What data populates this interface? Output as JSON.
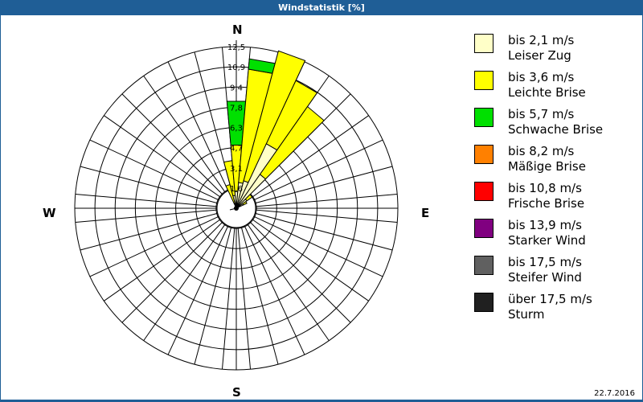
{
  "window": {
    "title": "Windstatistik [%]",
    "date": "22.7.2016"
  },
  "compass": {
    "n": "N",
    "e": "E",
    "s": "S",
    "w": "W"
  },
  "chart_data": {
    "type": "wind-rose",
    "title": "Windstatistik [%]",
    "unit": "%",
    "radial_ticks": [
      "1,6",
      "3,1",
      "4,7",
      "6,3",
      "7,8",
      "9,4",
      "10,9",
      "12,5"
    ],
    "radial_max": 12.5,
    "sector_width_deg": 10,
    "categories": [
      "bis 2,1 m/s",
      "bis 3,6 m/s",
      "bis 5,7 m/s",
      "bis 8,2 m/s",
      "bis 10,8 m/s",
      "bis 13,9 m/s",
      "bis 17,5 m/s",
      "über 17,5 m/s"
    ],
    "sectors": [
      {
        "direction_deg": 340,
        "cumulative": [
          0.4,
          1.9,
          1.9
        ]
      },
      {
        "direction_deg": 350,
        "cumulative": [
          1.0,
          3.7,
          3.7
        ]
      },
      {
        "direction_deg": 0,
        "cumulative": [
          1.3,
          4.9,
          8.3
        ]
      },
      {
        "direction_deg": 10,
        "cumulative": [
          2.0,
          10.8,
          11.6
        ]
      },
      {
        "direction_deg": 20,
        "cumulative": [
          2.2,
          12.6,
          12.6
        ]
      },
      {
        "direction_deg": 30,
        "cumulative": [
          5.5,
          10.9,
          10.9
        ]
      },
      {
        "direction_deg": 40,
        "cumulative": [
          3.2,
          9.6,
          9.6
        ]
      },
      {
        "direction_deg": 50,
        "cumulative": [
          1.0,
          1.5,
          1.5
        ]
      },
      {
        "direction_deg": 60,
        "cumulative": [
          0.6,
          0.9,
          0.9
        ]
      }
    ]
  },
  "legend": {
    "items": [
      {
        "range": "bis 2,1 m/s",
        "name": "Leiser Zug",
        "color": "#ffffc8"
      },
      {
        "range": "bis 3,6 m/s",
        "name": "Leichte Brise",
        "color": "#ffff00"
      },
      {
        "range": "bis 5,7 m/s",
        "name": "Schwache Brise",
        "color": "#00e000"
      },
      {
        "range": "bis 8,2 m/s",
        "name": "Mäßige Brise",
        "color": "#ff8000"
      },
      {
        "range": "bis 10,8 m/s",
        "name": "Frische Brise",
        "color": "#ff0000"
      },
      {
        "range": "bis 13,9 m/s",
        "name": "Starker Wind",
        "color": "#800080"
      },
      {
        "range": "bis 17,5 m/s",
        "name": "Steifer Wind",
        "color": "#606060"
      },
      {
        "range": "über 17,5 m/s",
        "name": "Sturm",
        "color": "#202020"
      }
    ]
  }
}
